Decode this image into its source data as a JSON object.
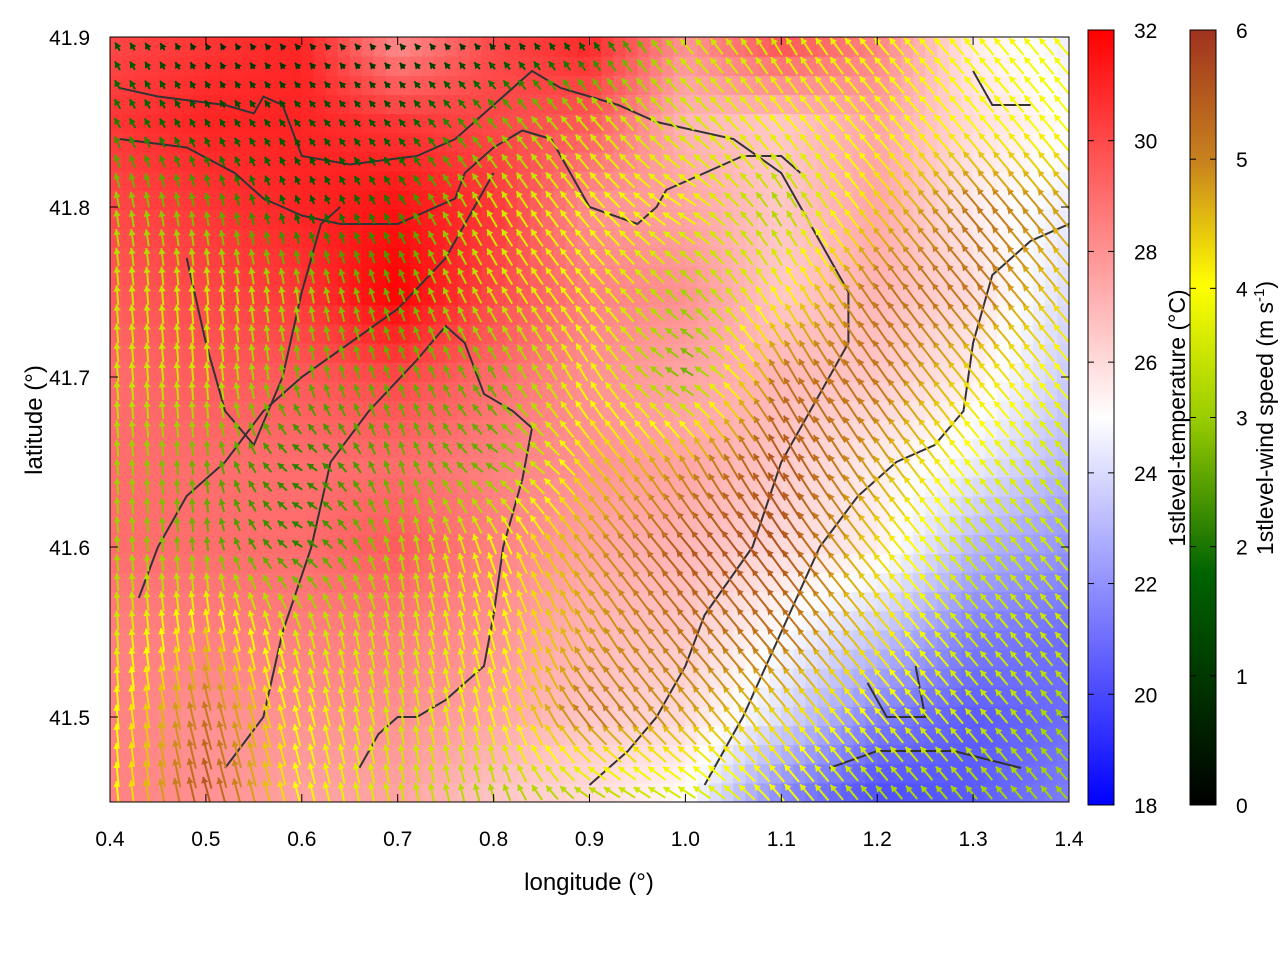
{
  "chart_data": {
    "type": "heatmap",
    "subtype": "temperature field with wind vectors and contour lines",
    "title": "",
    "xlabel": "longitude (°)",
    "ylabel": "latitude (°)",
    "xlim": [
      0.4,
      1.4
    ],
    "ylim": [
      41.45,
      41.9
    ],
    "x_ticks": [
      0.4,
      0.5,
      0.6,
      0.7,
      0.8,
      0.9,
      1.0,
      1.1,
      1.2,
      1.3,
      1.4
    ],
    "x_tick_labels": [
      "0.4",
      "0.5",
      "0.6",
      "0.7",
      "0.8",
      "0.9",
      "1.0",
      "1.1",
      "1.2",
      "1.3",
      "1.4"
    ],
    "y_ticks": [
      41.5,
      41.6,
      41.7,
      41.8,
      41.9
    ],
    "y_tick_labels": [
      "41.5",
      "41.6",
      "41.7",
      "41.8",
      "41.9"
    ],
    "grid": false,
    "temperature_colorbar": {
      "label": "1stlevel-temperature (°C)",
      "range": [
        18,
        32
      ],
      "ticks": [
        18,
        20,
        22,
        24,
        26,
        28,
        30,
        32
      ],
      "tick_labels": [
        "18",
        "20",
        "22",
        "24",
        "26",
        "28",
        "30",
        "32"
      ],
      "colors": [
        "#0000ff",
        "#ffffff",
        "#ff0000"
      ]
    },
    "wind_colorbar": {
      "label": "1stlevel-wind speed (m s",
      "label_sup": "-1",
      "label_end": ")",
      "range": [
        0,
        6
      ],
      "ticks": [
        0,
        1,
        2,
        3,
        4,
        5,
        6
      ],
      "tick_labels": [
        "0",
        "1",
        "2",
        "3",
        "4",
        "5",
        "6"
      ],
      "colors": [
        "#000000",
        "#006400",
        "#9acd00",
        "#ffff00",
        "#c8821e",
        "#a0321e"
      ]
    },
    "temperature_field": {
      "lon": [
        0.4,
        0.5,
        0.6,
        0.7,
        0.8,
        0.9,
        1.0,
        1.1,
        1.2,
        1.3,
        1.4
      ],
      "lat": [
        41.9,
        41.85,
        41.8,
        41.75,
        41.7,
        41.65,
        41.6,
        41.55,
        41.5,
        41.45
      ],
      "values": [
        [
          30.0,
          30.5,
          31.0,
          28.0,
          30.0,
          31.0,
          28.0,
          30.0,
          28.5,
          25.5,
          24.5
        ],
        [
          30.5,
          31.0,
          31.0,
          30.5,
          30.0,
          29.5,
          27.0,
          26.5,
          27.5,
          26.0,
          25.0
        ],
        [
          30.0,
          30.5,
          31.0,
          31.5,
          30.5,
          28.0,
          27.5,
          26.5,
          27.5,
          25.5,
          24.5
        ],
        [
          29.5,
          30.0,
          30.5,
          32.0,
          30.0,
          28.5,
          28.0,
          26.5,
          27.0,
          26.0,
          24.0
        ],
        [
          29.0,
          29.5,
          29.5,
          30.0,
          29.0,
          28.0,
          27.5,
          27.0,
          26.5,
          25.5,
          23.5
        ],
        [
          29.0,
          29.0,
          29.0,
          29.0,
          28.5,
          28.0,
          27.5,
          26.5,
          25.5,
          24.5,
          23.0
        ],
        [
          29.0,
          29.0,
          29.0,
          29.5,
          28.5,
          27.5,
          27.0,
          26.0,
          25.5,
          23.0,
          22.0
        ],
        [
          28.5,
          28.5,
          28.5,
          28.5,
          28.0,
          27.0,
          26.5,
          25.0,
          23.5,
          21.5,
          21.0
        ],
        [
          28.5,
          28.0,
          28.0,
          28.0,
          27.5,
          26.5,
          26.0,
          24.0,
          21.5,
          20.5,
          21.0
        ],
        [
          28.5,
          28.0,
          27.5,
          27.5,
          26.5,
          26.0,
          25.0,
          21.5,
          20.0,
          20.5,
          21.5
        ]
      ]
    },
    "wind_speed_field": {
      "lon": [
        0.4,
        0.5,
        0.6,
        0.7,
        0.8,
        0.9,
        1.0,
        1.1,
        1.2,
        1.3,
        1.4
      ],
      "lat": [
        41.9,
        41.85,
        41.8,
        41.75,
        41.7,
        41.65,
        41.6,
        41.55,
        41.5,
        41.45
      ],
      "values": [
        [
          1.0,
          0.5,
          0.5,
          0.5,
          0.5,
          0.8,
          3.0,
          3.0,
          3.5,
          3.5,
          3.5
        ],
        [
          1.5,
          1.0,
          1.0,
          1.0,
          2.0,
          3.0,
          3.0,
          3.5,
          3.5,
          3.5,
          3.5
        ],
        [
          2.5,
          2.0,
          1.0,
          1.5,
          3.0,
          3.5,
          3.5,
          2.5,
          4.0,
          5.0,
          4.5
        ],
        [
          3.0,
          3.0,
          2.5,
          2.0,
          3.0,
          3.5,
          2.5,
          3.5,
          5.0,
          5.0,
          4.0
        ],
        [
          3.0,
          3.0,
          2.0,
          2.0,
          2.0,
          3.5,
          2.0,
          5.0,
          5.0,
          4.0,
          3.5
        ],
        [
          2.5,
          2.0,
          1.5,
          2.0,
          2.0,
          4.0,
          4.5,
          5.5,
          4.5,
          3.5,
          3.0
        ],
        [
          2.5,
          2.0,
          1.5,
          2.5,
          3.5,
          4.5,
          5.5,
          5.5,
          4.0,
          3.0,
          3.0
        ],
        [
          3.0,
          4.0,
          3.0,
          3.0,
          3.5,
          4.5,
          5.0,
          5.0,
          4.0,
          3.0,
          3.0
        ],
        [
          3.5,
          5.0,
          3.5,
          3.0,
          3.5,
          5.0,
          4.5,
          4.0,
          3.5,
          3.0,
          2.5
        ],
        [
          3.5,
          5.5,
          3.5,
          3.0,
          2.5,
          2.5,
          3.0,
          3.5,
          2.5,
          2.5,
          2.5
        ]
      ]
    },
    "wind_direction_field": {
      "description": "direction the wind blows toward, degrees clockwise from north",
      "lon": [
        0.4,
        0.5,
        0.6,
        0.7,
        0.8,
        0.9,
        1.0,
        1.1,
        1.2,
        1.3,
        1.4
      ],
      "lat": [
        41.9,
        41.85,
        41.8,
        41.75,
        41.7,
        41.65,
        41.6,
        41.55,
        41.5,
        41.45
      ],
      "values": [
        [
          330,
          330,
          320,
          320,
          320,
          330,
          320,
          330,
          320,
          320,
          320
        ],
        [
          330,
          330,
          320,
          320,
          320,
          320,
          315,
          320,
          320,
          320,
          320
        ],
        [
          350,
          350,
          340,
          330,
          330,
          320,
          300,
          330,
          320,
          320,
          320
        ],
        [
          355,
          355,
          350,
          340,
          330,
          320,
          315,
          330,
          325,
          320,
          320
        ],
        [
          355,
          355,
          350,
          340,
          330,
          330,
          300,
          330,
          325,
          320,
          320
        ],
        [
          355,
          355,
          300,
          345,
          300,
          320,
          330,
          330,
          325,
          320,
          320
        ],
        [
          355,
          355,
          300,
          350,
          340,
          320,
          320,
          325,
          320,
          320,
          320
        ],
        [
          355,
          350,
          345,
          350,
          345,
          330,
          320,
          320,
          320,
          320,
          320
        ],
        [
          355,
          345,
          345,
          350,
          345,
          320,
          320,
          320,
          320,
          320,
          320
        ],
        [
          355,
          345,
          345,
          350,
          345,
          300,
          300,
          320,
          320,
          320,
          320
        ]
      ]
    },
    "contours": [
      [
        [
          0.41,
          41.87
        ],
        [
          0.45,
          41.865
        ],
        [
          0.52,
          41.86
        ],
        [
          0.55,
          41.855
        ],
        [
          0.56,
          41.865
        ],
        [
          0.58,
          41.86
        ],
        [
          0.6,
          41.83
        ],
        [
          0.65,
          41.825
        ],
        [
          0.72,
          41.83
        ],
        [
          0.76,
          41.84
        ],
        [
          0.8,
          41.86
        ],
        [
          0.84,
          41.88
        ],
        [
          0.87,
          41.87
        ],
        [
          0.93,
          41.86
        ],
        [
          0.97,
          41.85
        ],
        [
          1.05,
          41.84
        ],
        [
          1.1,
          41.82
        ],
        [
          1.12,
          41.8
        ],
        [
          1.14,
          41.78
        ],
        [
          1.17,
          41.75
        ],
        [
          1.17,
          41.72
        ],
        [
          1.14,
          41.69
        ],
        [
          1.1,
          41.65
        ],
        [
          1.07,
          41.6
        ],
        [
          1.02,
          41.56
        ],
        [
          1.0,
          41.53
        ],
        [
          0.97,
          41.5
        ],
        [
          0.94,
          41.48
        ],
        [
          0.9,
          41.46
        ]
      ],
      [
        [
          0.41,
          41.84
        ],
        [
          0.48,
          41.835
        ],
        [
          0.53,
          41.82
        ],
        [
          0.56,
          41.805
        ],
        [
          0.58,
          41.8
        ],
        [
          0.6,
          41.795
        ],
        [
          0.64,
          41.79
        ],
        [
          0.7,
          41.79
        ],
        [
          0.76,
          41.805
        ],
        [
          0.77,
          41.82
        ],
        [
          0.8,
          41.835
        ],
        [
          0.83,
          41.845
        ],
        [
          0.86,
          41.84
        ],
        [
          0.88,
          41.82
        ],
        [
          0.9,
          41.8
        ],
        [
          0.95,
          41.79
        ],
        [
          0.97,
          41.8
        ],
        [
          0.98,
          41.81
        ],
        [
          1.02,
          41.82
        ],
        [
          1.06,
          41.83
        ],
        [
          1.1,
          41.83
        ],
        [
          1.12,
          41.82
        ]
      ],
      [
        [
          0.52,
          41.47
        ],
        [
          0.56,
          41.5
        ],
        [
          0.58,
          41.55
        ],
        [
          0.61,
          41.6
        ],
        [
          0.63,
          41.65
        ],
        [
          0.67,
          41.68
        ],
        [
          0.72,
          41.71
        ],
        [
          0.75,
          41.73
        ],
        [
          0.77,
          41.72
        ],
        [
          0.79,
          41.69
        ],
        [
          0.82,
          41.68
        ],
        [
          0.84,
          41.67
        ],
        [
          0.83,
          41.64
        ],
        [
          0.81,
          41.6
        ],
        [
          0.8,
          41.56
        ],
        [
          0.79,
          41.53
        ],
        [
          0.75,
          41.51
        ],
        [
          0.72,
          41.5
        ],
        [
          0.7,
          41.5
        ],
        [
          0.68,
          41.49
        ],
        [
          0.66,
          41.47
        ]
      ],
      [
        [
          0.43,
          41.57
        ],
        [
          0.45,
          41.6
        ],
        [
          0.48,
          41.63
        ],
        [
          0.52,
          41.65
        ],
        [
          0.56,
          41.68
        ],
        [
          0.6,
          41.7
        ],
        [
          0.65,
          41.72
        ],
        [
          0.7,
          41.74
        ],
        [
          0.75,
          41.77
        ],
        [
          0.78,
          41.8
        ],
        [
          0.8,
          41.82
        ]
      ],
      [
        [
          1.02,
          41.46
        ],
        [
          1.06,
          41.5
        ],
        [
          1.1,
          41.55
        ],
        [
          1.14,
          41.6
        ],
        [
          1.18,
          41.63
        ],
        [
          1.22,
          41.65
        ],
        [
          1.26,
          41.66
        ],
        [
          1.29,
          41.68
        ],
        [
          1.3,
          41.72
        ],
        [
          1.32,
          41.76
        ],
        [
          1.36,
          41.78
        ],
        [
          1.4,
          41.79
        ]
      ],
      [
        [
          0.48,
          41.77
        ],
        [
          0.5,
          41.72
        ],
        [
          0.52,
          41.68
        ],
        [
          0.55,
          41.66
        ],
        [
          0.58,
          41.7
        ],
        [
          0.6,
          41.75
        ],
        [
          0.62,
          41.79
        ],
        [
          0.64,
          41.8
        ]
      ],
      [
        [
          1.24,
          41.53
        ],
        [
          1.25,
          41.5
        ],
        [
          1.21,
          41.5
        ],
        [
          1.19,
          41.52
        ]
      ],
      [
        [
          1.15,
          41.47
        ],
        [
          1.2,
          41.48
        ],
        [
          1.28,
          41.48
        ],
        [
          1.35,
          41.47
        ]
      ],
      [
        [
          1.3,
          41.88
        ],
        [
          1.32,
          41.86
        ],
        [
          1.36,
          41.86
        ]
      ]
    ]
  }
}
